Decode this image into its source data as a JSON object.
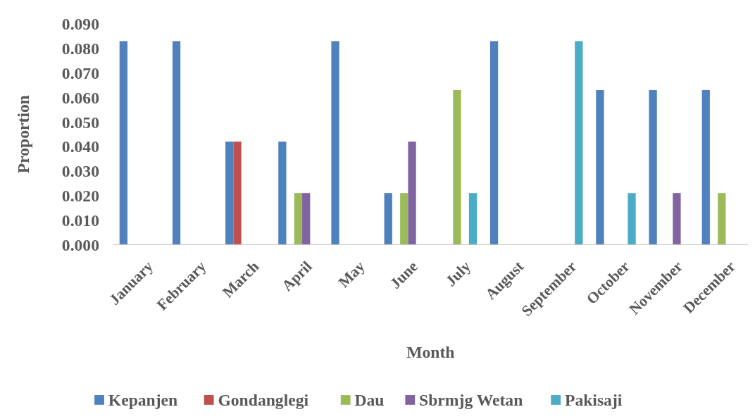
{
  "chart_data": {
    "type": "bar",
    "xlabel": "Month",
    "ylabel": "Proportion",
    "categories": [
      "January",
      "February",
      "March",
      "April",
      "May",
      "June",
      "July",
      "August",
      "September",
      "October",
      "November",
      "December"
    ],
    "series": [
      {
        "name": "Kepanjen",
        "color": "#4f81bd",
        "values": [
          0.083,
          0.083,
          0.042,
          0.042,
          0.083,
          0.021,
          0,
          0.083,
          0,
          0.063,
          0.063,
          0.063
        ]
      },
      {
        "name": "Gondanglegi",
        "color": "#c0504d",
        "values": [
          0,
          0,
          0.042,
          0,
          0,
          0,
          0,
          0,
          0,
          0,
          0,
          0
        ]
      },
      {
        "name": "Dau",
        "color": "#9bbb59",
        "values": [
          0,
          0,
          0,
          0.021,
          0,
          0.021,
          0.063,
          0,
          0,
          0,
          0,
          0.021
        ]
      },
      {
        "name": "Sbrmjg Wetan",
        "color": "#8064a2",
        "values": [
          0,
          0,
          0,
          0.021,
          0,
          0.042,
          0,
          0,
          0,
          0,
          0.021,
          0
        ]
      },
      {
        "name": "Pakisaji",
        "color": "#4bacc6",
        "values": [
          0,
          0,
          0,
          0,
          0,
          0,
          0.021,
          0,
          0.083,
          0.021,
          0,
          0
        ]
      }
    ],
    "ylim": [
      0,
      0.09
    ],
    "yticks": [
      {
        "value": 0,
        "label": "0.000"
      },
      {
        "value": 0.01,
        "label": "0.010"
      },
      {
        "value": 0.02,
        "label": "0.020"
      },
      {
        "value": 0.03,
        "label": "0.030"
      },
      {
        "value": 0.04,
        "label": "0.040"
      },
      {
        "value": 0.05,
        "label": "0.050"
      },
      {
        "value": 0.06,
        "label": "0.060"
      },
      {
        "value": 0.07,
        "label": "0.070"
      },
      {
        "value": 0.08,
        "label": "0.080"
      },
      {
        "value": 0.09,
        "label": "0.090"
      }
    ],
    "legend": "bottom"
  }
}
